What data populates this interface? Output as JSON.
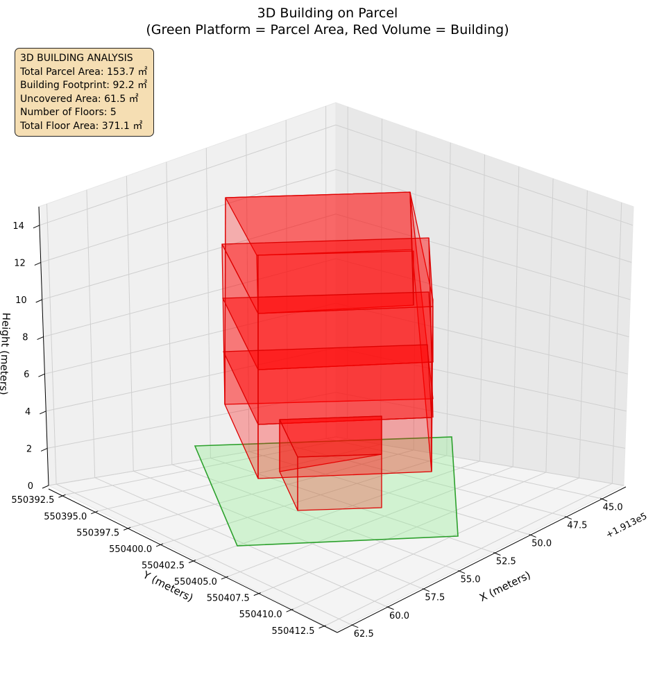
{
  "chart_data": {
    "type": "3d-polygons",
    "title": "3D Building on Parcel",
    "subtitle": "(Green Platform = Parcel Area, Red Volume = Building)",
    "xlabel": "X (meters)",
    "ylabel": "Y (meters)",
    "zlabel": "Height (meters)",
    "x_offset_label": "+1.913e5",
    "x_ticks": [
      "45.0",
      "47.5",
      "50.0",
      "52.5",
      "55.0",
      "57.5",
      "60.0",
      "62.5"
    ],
    "y_ticks": [
      "550392.5",
      "550395.0",
      "550397.5",
      "550400.0",
      "550402.5",
      "550405.0",
      "550407.5",
      "550410.0",
      "550412.5"
    ],
    "z_ticks": [
      "0",
      "2",
      "4",
      "6",
      "8",
      "10",
      "12",
      "14"
    ],
    "grid": true,
    "colors": {
      "parcel_fill": "#90ee90",
      "parcel_edge": "#2ca02c",
      "building_fill": "#ff0000",
      "building_edge": "#dd0000",
      "info_box": "#f5deb3"
    },
    "info_box": {
      "heading": "3D BUILDING ANALYSIS",
      "lines": [
        "Total Parcel Area: 153.7 ㎡",
        "Building Footprint: 92.2 ㎡",
        "Uncovered Area: 61.5 ㎡",
        "Number of Floors: 5",
        "Total Floor Area: 371.1 ㎡"
      ]
    }
  }
}
